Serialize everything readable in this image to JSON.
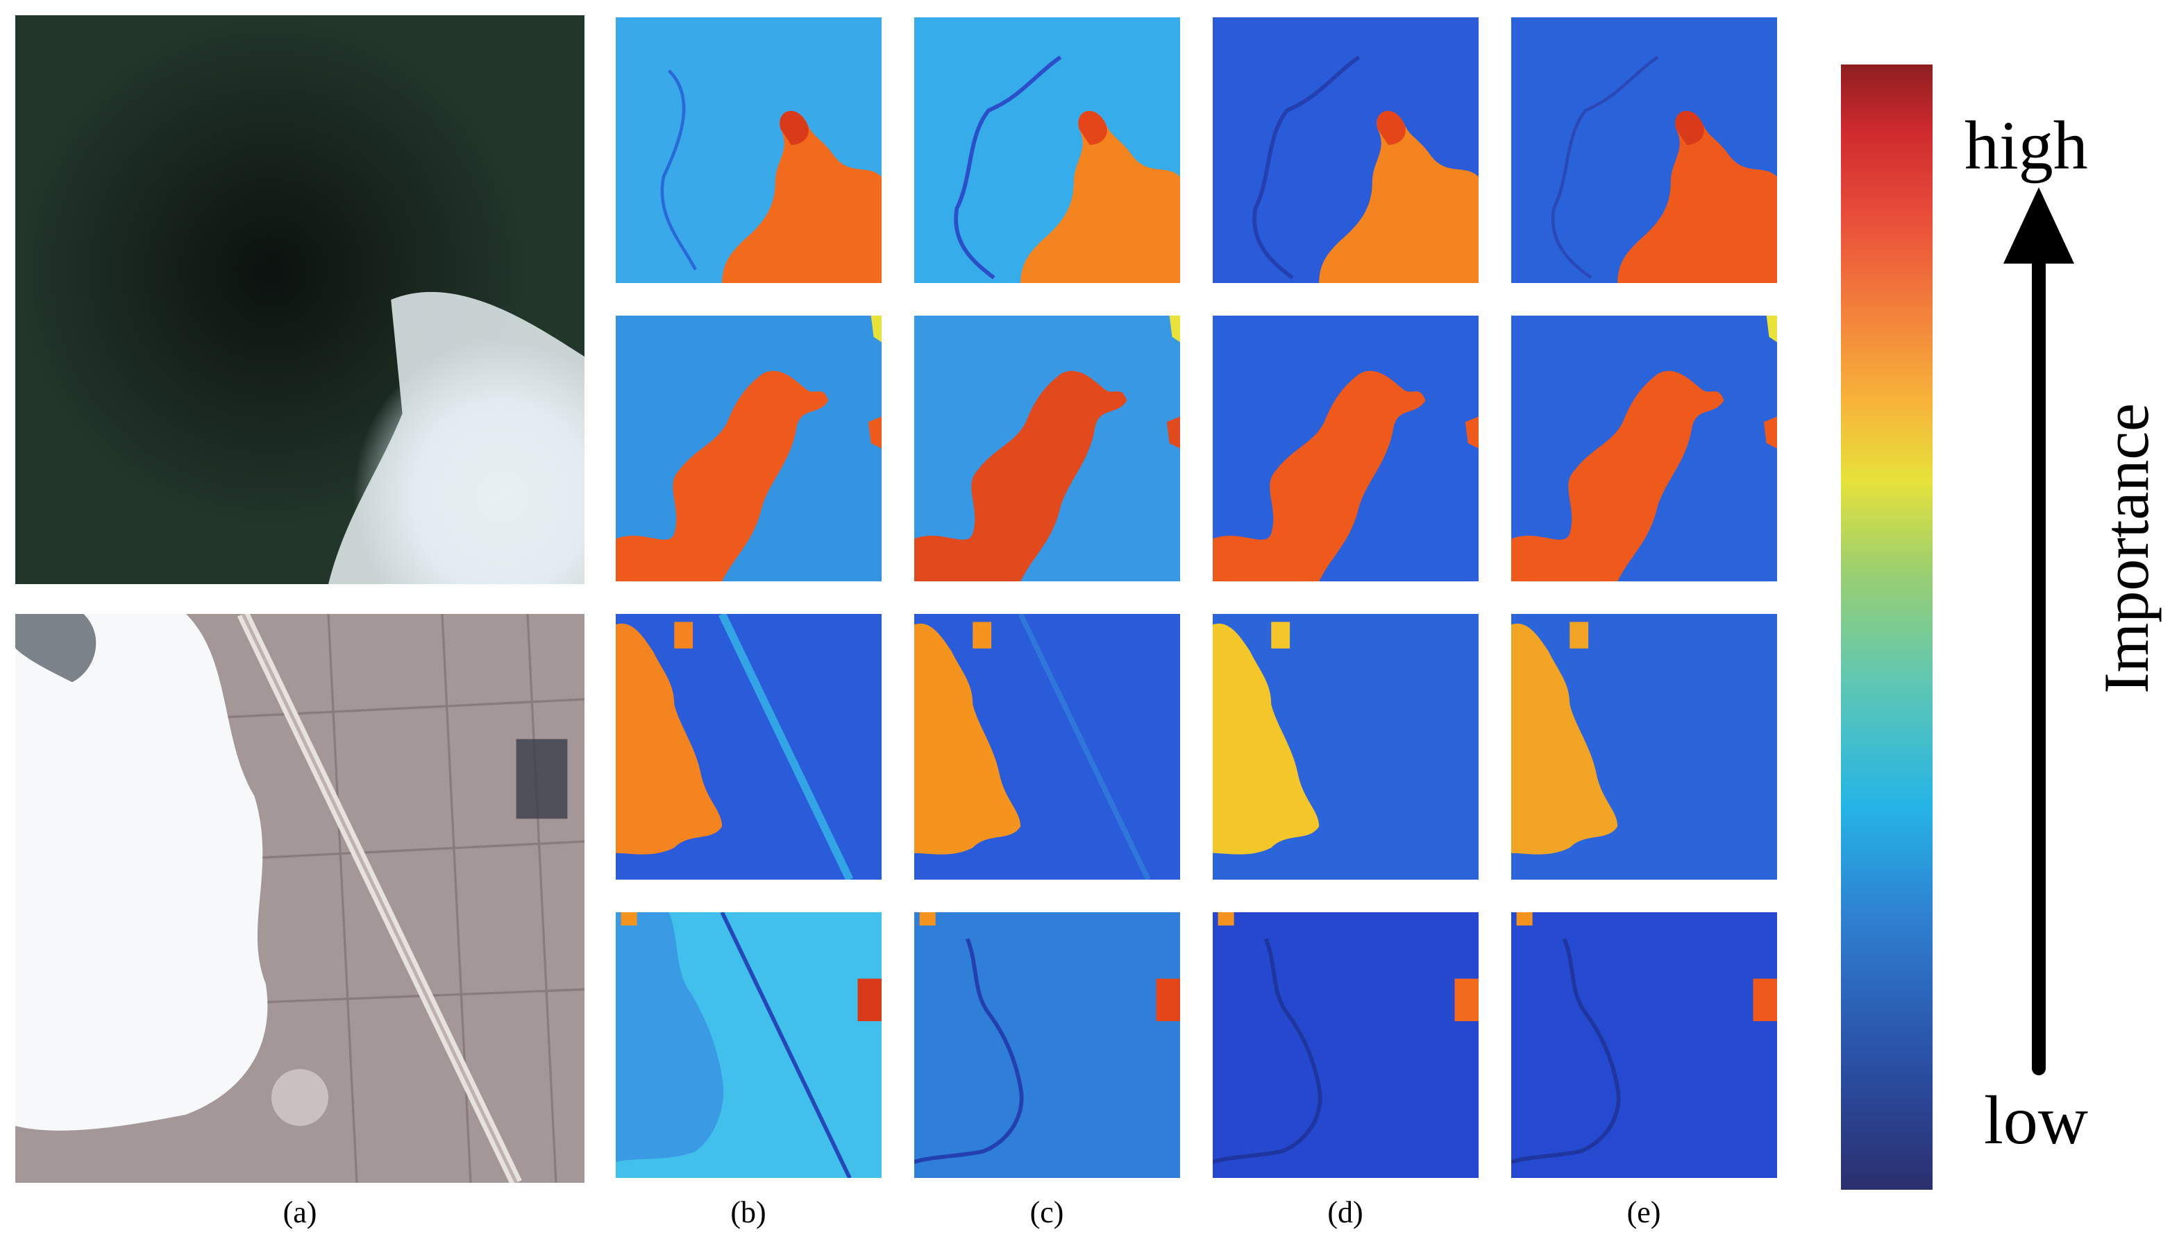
{
  "labels": {
    "a": "(a)",
    "b": "(b)",
    "c": "(c)",
    "d": "(d)",
    "e": "(e)"
  },
  "colorbar": {
    "high": "high",
    "low": "low",
    "title": "Importance"
  },
  "colors": {
    "map_background_variants": [
      "#3ab0ea",
      "#34a5e6",
      "#2a5bd8",
      "#2a62d9"
    ],
    "highlight": "#f26a1b",
    "highlight_dark": "#d93a1a",
    "forest": "#1b2a22",
    "cloud": "#e8eef2",
    "farmland": "#a89a9a"
  }
}
